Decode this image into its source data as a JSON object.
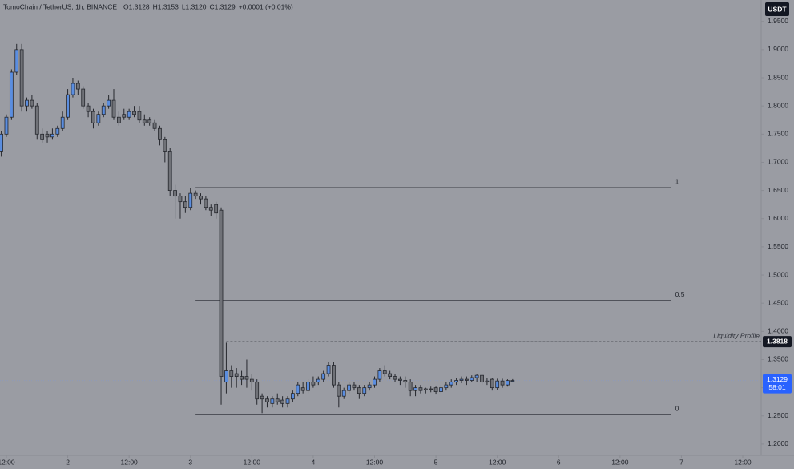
{
  "chart_data": {
    "type": "candlestick",
    "title": "TomoChain / TetherUS, 1h, BINANCE",
    "header_values": [
      "O1.3128",
      "H1.3153",
      "L1.3120",
      "C1.3129",
      "+0.0001 (+0.01%)"
    ],
    "currency": "USDT",
    "up_color": "#5b8ee0",
    "down_color": "#707278",
    "x": [
      -13,
      -12,
      -11,
      -10,
      -9,
      -8,
      -7,
      -6,
      -5,
      -4,
      -3,
      -2,
      -1,
      0,
      1,
      2,
      3,
      4,
      5,
      6,
      7,
      8,
      9,
      10,
      11,
      12,
      13,
      14,
      15,
      16,
      17,
      18,
      19,
      20,
      21,
      22,
      23,
      24,
      25,
      26,
      27,
      28,
      29,
      30,
      31,
      32,
      33,
      34,
      35,
      36,
      37,
      38,
      39,
      40,
      41,
      42,
      43,
      44,
      45,
      46,
      47,
      48,
      49,
      50,
      51,
      52,
      53,
      54,
      55,
      56,
      57,
      58,
      59,
      60,
      61,
      62,
      63,
      64,
      65,
      66,
      67,
      68,
      69,
      70,
      71,
      72,
      73,
      74,
      75,
      76,
      77,
      78,
      79,
      80,
      81,
      82,
      83,
      84,
      85,
      86,
      87
    ],
    "open": [
      1.72,
      1.75,
      1.78,
      1.86,
      1.9,
      1.8,
      1.81,
      1.8,
      1.75,
      1.75,
      1.745,
      1.75,
      1.76,
      1.78,
      1.82,
      1.84,
      1.83,
      1.8,
      1.79,
      1.77,
      1.785,
      1.8,
      1.81,
      1.78,
      1.785,
      1.78,
      1.79,
      1.79,
      1.775,
      1.775,
      1.77,
      1.76,
      1.74,
      1.72,
      1.65,
      1.64,
      1.63,
      1.62,
      1.645,
      1.64,
      1.635,
      1.62,
      1.625,
      1.615,
      1.31,
      1.33,
      1.325,
      1.32,
      1.32,
      1.315,
      1.31,
      1.285,
      1.28,
      1.272,
      1.28,
      1.278,
      1.272,
      1.28,
      1.29,
      1.3,
      1.295,
      1.31,
      1.31,
      1.315,
      1.325,
      1.34,
      1.305,
      1.285,
      1.295,
      1.305,
      1.3,
      1.29,
      1.3,
      1.305,
      1.315,
      1.33,
      1.325,
      1.32,
      1.315,
      1.313,
      1.31,
      1.295,
      1.3,
      1.298,
      1.298,
      1.3,
      1.293,
      1.3,
      1.305,
      1.31,
      1.313,
      1.315,
      1.313,
      1.318,
      1.322,
      1.312,
      1.315,
      1.3,
      1.312,
      1.305,
      1.3128
    ],
    "high": [
      1.755,
      1.785,
      1.865,
      1.91,
      1.91,
      1.815,
      1.82,
      1.805,
      1.76,
      1.755,
      1.76,
      1.765,
      1.79,
      1.83,
      1.85,
      1.845,
      1.835,
      1.805,
      1.795,
      1.79,
      1.805,
      1.82,
      1.83,
      1.79,
      1.795,
      1.795,
      1.8,
      1.8,
      1.785,
      1.78,
      1.775,
      1.765,
      1.745,
      1.725,
      1.66,
      1.645,
      1.64,
      1.655,
      1.65,
      1.645,
      1.64,
      1.625,
      1.63,
      1.62,
      1.38,
      1.34,
      1.335,
      1.33,
      1.35,
      1.325,
      1.315,
      1.29,
      1.285,
      1.285,
      1.29,
      1.285,
      1.285,
      1.295,
      1.31,
      1.31,
      1.315,
      1.32,
      1.32,
      1.33,
      1.345,
      1.345,
      1.31,
      1.3,
      1.31,
      1.31,
      1.305,
      1.305,
      1.31,
      1.32,
      1.335,
      1.34,
      1.33,
      1.325,
      1.32,
      1.32,
      1.315,
      1.305,
      1.305,
      1.3,
      1.302,
      1.302,
      1.305,
      1.31,
      1.315,
      1.318,
      1.32,
      1.32,
      1.322,
      1.325,
      1.325,
      1.318,
      1.318,
      1.316,
      1.316,
      1.315,
      1.3153
    ],
    "low": [
      1.71,
      1.745,
      1.775,
      1.855,
      1.79,
      1.79,
      1.795,
      1.74,
      1.735,
      1.735,
      1.74,
      1.745,
      1.755,
      1.775,
      1.815,
      1.82,
      1.795,
      1.78,
      1.76,
      1.765,
      1.78,
      1.795,
      1.775,
      1.765,
      1.775,
      1.775,
      1.78,
      1.77,
      1.765,
      1.765,
      1.755,
      1.73,
      1.7,
      1.64,
      1.6,
      1.6,
      1.61,
      1.615,
      1.635,
      1.625,
      1.615,
      1.605,
      1.6,
      1.27,
      1.29,
      1.3,
      1.3,
      1.305,
      1.3,
      1.295,
      1.27,
      1.255,
      1.265,
      1.265,
      1.27,
      1.265,
      1.265,
      1.275,
      1.285,
      1.29,
      1.29,
      1.3,
      1.305,
      1.31,
      1.32,
      1.3,
      1.265,
      1.28,
      1.29,
      1.295,
      1.28,
      1.285,
      1.295,
      1.3,
      1.31,
      1.32,
      1.315,
      1.31,
      1.305,
      1.3,
      1.285,
      1.285,
      1.29,
      1.29,
      1.292,
      1.288,
      1.29,
      1.295,
      1.3,
      1.305,
      1.308,
      1.305,
      1.31,
      1.31,
      1.305,
      1.305,
      1.295,
      1.296,
      1.3,
      1.302,
      1.312
    ],
    "close": [
      1.75,
      1.78,
      1.86,
      1.9,
      1.8,
      1.81,
      1.8,
      1.75,
      1.74,
      1.745,
      1.75,
      1.76,
      1.78,
      1.82,
      1.84,
      1.83,
      1.8,
      1.79,
      1.77,
      1.785,
      1.8,
      1.81,
      1.78,
      1.77,
      1.78,
      1.79,
      1.785,
      1.775,
      1.77,
      1.77,
      1.76,
      1.74,
      1.72,
      1.65,
      1.64,
      1.63,
      1.62,
      1.645,
      1.64,
      1.635,
      1.62,
      1.615,
      1.61,
      1.32,
      1.33,
      1.32,
      1.32,
      1.315,
      1.315,
      1.31,
      1.28,
      1.28,
      1.275,
      1.28,
      1.275,
      1.272,
      1.28,
      1.29,
      1.305,
      1.295,
      1.31,
      1.305,
      1.315,
      1.325,
      1.34,
      1.305,
      1.285,
      1.295,
      1.305,
      1.3,
      1.29,
      1.3,
      1.305,
      1.315,
      1.33,
      1.325,
      1.32,
      1.315,
      1.313,
      1.31,
      1.295,
      1.3,
      1.295,
      1.296,
      1.297,
      1.293,
      1.3,
      1.305,
      1.31,
      1.313,
      1.315,
      1.313,
      1.318,
      1.322,
      1.31,
      1.31,
      1.3,
      1.312,
      1.305,
      1.3128,
      1.3129
    ],
    "xlim": [
      -13.25,
      135.6
    ],
    "xticks": [
      {
        "value": -12,
        "label": "12:00"
      },
      {
        "value": 0,
        "label": "2"
      },
      {
        "value": 12,
        "label": "12:00"
      },
      {
        "value": 24,
        "label": "3"
      },
      {
        "value": 36,
        "label": "12:00"
      },
      {
        "value": 48,
        "label": "4"
      },
      {
        "value": 60,
        "label": "12:00"
      },
      {
        "value": 72,
        "label": "5"
      },
      {
        "value": 84,
        "label": "12:00"
      },
      {
        "value": 96,
        "label": "6"
      },
      {
        "value": 108,
        "label": "12:00"
      },
      {
        "value": 120,
        "label": "7"
      },
      {
        "value": 132,
        "label": "12:00"
      }
    ],
    "ylim": [
      1.18,
      1.988
    ],
    "yticks": [
      {
        "value": 1.2,
        "label": "1.2000"
      },
      {
        "value": 1.25,
        "label": "1.2500"
      },
      {
        "value": 1.3,
        "label": "1.3000"
      },
      {
        "value": 1.35,
        "label": "1.3500"
      },
      {
        "value": 1.4,
        "label": "1.4000"
      },
      {
        "value": 1.45,
        "label": "1.4500"
      },
      {
        "value": 1.5,
        "label": "1.5000"
      },
      {
        "value": 1.55,
        "label": "1.5500"
      },
      {
        "value": 1.6,
        "label": "1.6000"
      },
      {
        "value": 1.65,
        "label": "1.6500"
      },
      {
        "value": 1.7,
        "label": "1.7000"
      },
      {
        "value": 1.75,
        "label": "1.7500"
      },
      {
        "value": 1.8,
        "label": "1.8000"
      },
      {
        "value": 1.85,
        "label": "1.8500"
      },
      {
        "value": 1.9,
        "label": "1.9000"
      },
      {
        "value": 1.95,
        "label": "1.9500"
      }
    ],
    "fib_levels": [
      {
        "label": "1",
        "value": 1.655,
        "start_x": 25,
        "end_x": 118
      },
      {
        "label": "0.5",
        "value": 1.455,
        "start_x": 25,
        "end_x": 118
      },
      {
        "label": "0",
        "value": 1.252,
        "start_x": 25,
        "end_x": 118
      }
    ],
    "liquidity_line": {
      "label": "Liquidity Profile",
      "value": 1.3818,
      "start_x": 31
    },
    "last_price": 1.3129,
    "countdown": "58:01"
  }
}
